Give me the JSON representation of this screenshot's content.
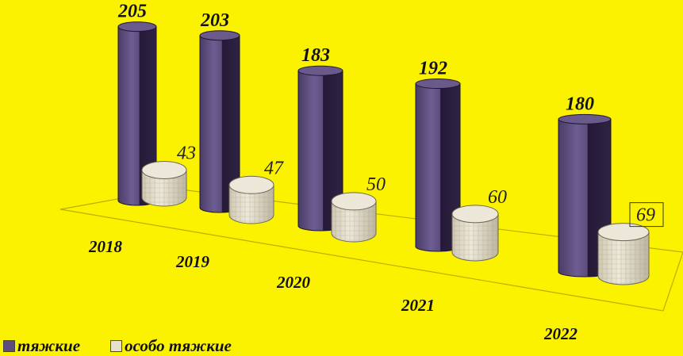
{
  "colors": {
    "background": "#fbf200",
    "severe": "#5d4d7d",
    "severe_dark": "#2a1f3d",
    "especially": "#e6e0cf",
    "especially_dark": "#b9b29d"
  },
  "legend": {
    "position": "bottom-left",
    "items": [
      {
        "label": "тяжкие",
        "color": "#5d4d7d"
      },
      {
        "label": "особо тяжкие",
        "color": "#e6e0cf"
      }
    ]
  },
  "chart_data": {
    "type": "bar",
    "style": "3d-cylinder",
    "categories": [
      "2018",
      "2019",
      "2020",
      "2021",
      "2022"
    ],
    "series": [
      {
        "label": "тяжкие",
        "values": [
          205,
          203,
          183,
          192,
          180
        ]
      },
      {
        "label": "особо тяжкие",
        "values": [
          43,
          47,
          50,
          60,
          69
        ]
      }
    ],
    "data_labels": {
      "series_0": [
        "205",
        "203",
        "183",
        "192",
        "180"
      ],
      "series_1": [
        "43",
        "47",
        "50",
        "60",
        "69"
      ]
    },
    "ylim": [
      0,
      220
    ],
    "grid": false,
    "legend_position": "bottom-left"
  }
}
